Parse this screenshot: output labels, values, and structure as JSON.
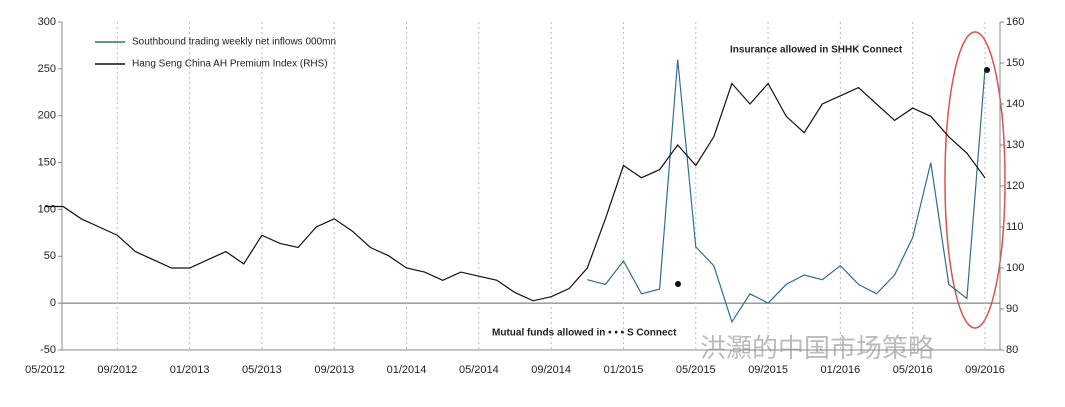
{
  "chart_data": {
    "type": "line",
    "categories": [
      "05/2012",
      null,
      null,
      null,
      "09/2012",
      null,
      null,
      null,
      "01/2013",
      null,
      null,
      null,
      "05/2013",
      null,
      null,
      null,
      "09/2013",
      null,
      null,
      null,
      "01/2014",
      null,
      null,
      null,
      "05/2014",
      null,
      null,
      null,
      "09/2014",
      null,
      null,
      null,
      "01/2015",
      null,
      null,
      null,
      "05/2015",
      null,
      null,
      null,
      "09/2015",
      null,
      null,
      null,
      "01/2016",
      null,
      null,
      null,
      "05/2016",
      null,
      null,
      null,
      "09/2016"
    ],
    "series": [
      {
        "name": "Southbound trading weekly net inflows 000mn",
        "color": "#2e6f8e",
        "values": [
          null,
          null,
          null,
          null,
          null,
          null,
          null,
          null,
          null,
          null,
          null,
          null,
          null,
          null,
          null,
          null,
          null,
          null,
          null,
          null,
          null,
          null,
          null,
          null,
          null,
          null,
          null,
          null,
          null,
          null,
          25,
          20,
          45,
          10,
          15,
          260,
          60,
          40,
          -20,
          10,
          0,
          20,
          30,
          25,
          40,
          20,
          10,
          30,
          70,
          150,
          20,
          5,
          250
        ]
      },
      {
        "name": "Hang Seng China AH Premium Index (RHS)",
        "color": "#111111",
        "axis": "y2",
        "values": [
          115,
          115,
          112,
          110,
          108,
          104,
          102,
          100,
          100,
          102,
          104,
          101,
          108,
          106,
          105,
          110,
          112,
          109,
          105,
          103,
          100,
          99,
          97,
          99,
          98,
          97,
          94,
          92,
          93,
          95,
          100,
          112,
          125,
          122,
          124,
          130,
          125,
          132,
          145,
          140,
          145,
          137,
          133,
          140,
          142,
          144,
          140,
          136,
          139,
          137,
          132,
          128,
          122
        ]
      }
    ],
    "ylim": [
      -50,
      300
    ],
    "yticks": [
      -50,
      0,
      50,
      100,
      150,
      200,
      250,
      300
    ],
    "y2lim": [
      80,
      160
    ],
    "y2ticks": [
      80,
      90,
      100,
      110,
      120,
      130,
      140,
      150,
      160
    ],
    "annotations": [
      "Insurance allowed in SHHK Connect",
      "Mutual funds allowed in • • • S Connect"
    ],
    "watermark": "洪灝的中国市场策略"
  }
}
